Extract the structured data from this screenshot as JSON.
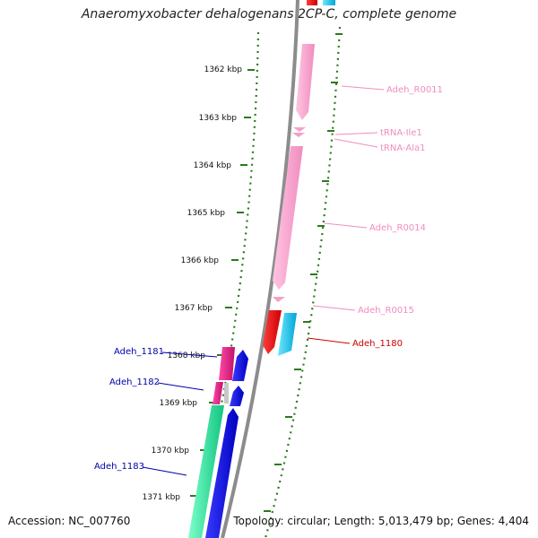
{
  "title": "Anaeromyxobacter dehalogenans 2CP-C, complete genome",
  "footer": {
    "accession": "Accession: NC_007760",
    "summary": "Topology: circular; Length: 5,013,479 bp; Genes: 4,404"
  },
  "ticks": [
    {
      "label": "1362 kbp"
    },
    {
      "label": "1363 kbp"
    },
    {
      "label": "1364 kbp"
    },
    {
      "label": "1365 kbp"
    },
    {
      "label": "1366 kbp"
    },
    {
      "label": "1367 kbp"
    },
    {
      "label": "1368 kbp"
    },
    {
      "label": "1369 kbp"
    },
    {
      "label": "1370 kbp"
    },
    {
      "label": "1371 kbp"
    }
  ],
  "features": {
    "right": [
      {
        "label": "Adeh_R0011",
        "kind": "rRNA"
      },
      {
        "label": "tRNA-Ile1",
        "kind": "tRNA"
      },
      {
        "label": "tRNA-Ala1",
        "kind": "tRNA"
      },
      {
        "label": "Adeh_R0014",
        "kind": "rRNA"
      },
      {
        "label": "Adeh_R0015",
        "kind": "rRNA"
      },
      {
        "label": "Adeh_1180",
        "kind": "gene"
      }
    ],
    "left": [
      {
        "label": "Adeh_1181",
        "kind": "gene"
      },
      {
        "label": "Adeh_1182",
        "kind": "gene"
      },
      {
        "label": "Adeh_1183",
        "kind": "gene"
      }
    ]
  },
  "colors": {
    "backbone": "#8c8c8c",
    "tick": "#2b7a1e",
    "dotted_track": "#2b7a1e",
    "rna_fill": "#f9a9cf",
    "rna_label": "#f08cbf",
    "gene_red": "#e60000",
    "gene_cyan": "#00c8f0",
    "gene_magenta": "#e0197a",
    "gene_blue": "#0000e6",
    "gene_green": "#19e69a",
    "left_label": "#0000aa",
    "right_gene_label": "#cc0000"
  }
}
